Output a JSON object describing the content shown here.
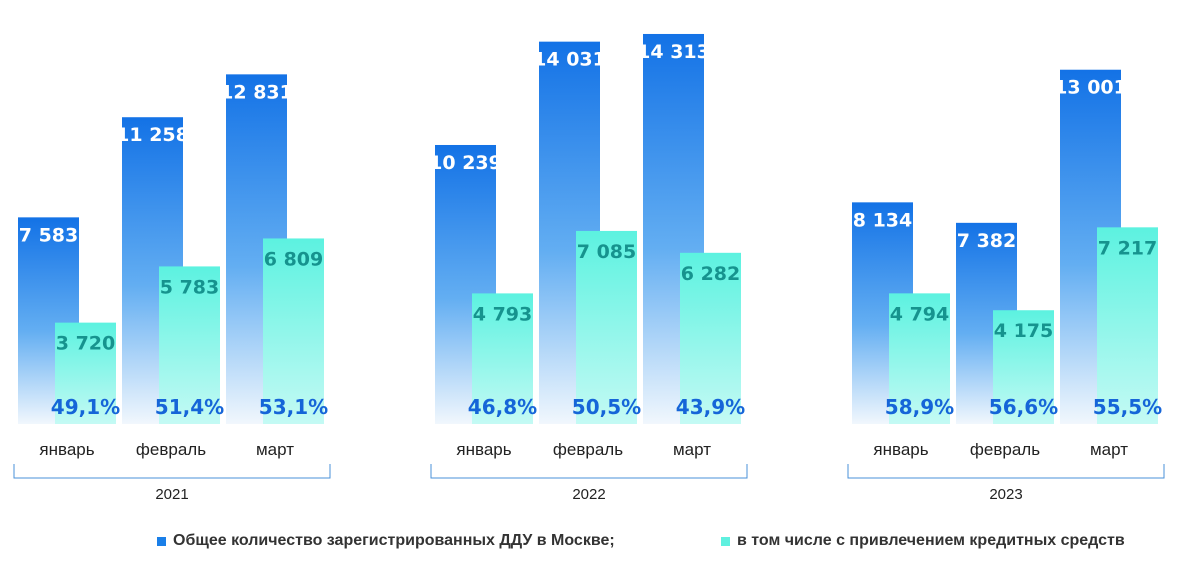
{
  "chart_data": {
    "type": "bar",
    "groups": [
      {
        "year": "2021",
        "months": [
          {
            "month": "январь",
            "total": 7583,
            "total_label": "7 583",
            "credit": 3720,
            "credit_label": "3 720",
            "share": "49,1%"
          },
          {
            "month": "февраль",
            "total": 11258,
            "total_label": "11 258",
            "credit": 5783,
            "credit_label": "5 783",
            "share": "51,4%"
          },
          {
            "month": "март",
            "total": 12831,
            "total_label": "12 831",
            "credit": 6809,
            "credit_label": "6 809",
            "share": "53,1%"
          }
        ]
      },
      {
        "year": "2022",
        "months": [
          {
            "month": "январь",
            "total": 10239,
            "total_label": "10 239",
            "credit": 4793,
            "credit_label": "4 793",
            "share": "46,8%"
          },
          {
            "month": "февраль",
            "total": 14031,
            "total_label": "14 031",
            "credit": 7085,
            "credit_label": "7 085",
            "share": "50,5%"
          },
          {
            "month": "март",
            "total": 14313,
            "total_label": "14 313",
            "credit": 6282,
            "credit_label": "6 282",
            "share": "43,9%"
          }
        ]
      },
      {
        "year": "2023",
        "months": [
          {
            "month": "январь",
            "total": 8134,
            "total_label": "8 134",
            "credit": 4794,
            "credit_label": "4 794",
            "share": "58,9%"
          },
          {
            "month": "февраль",
            "total": 7382,
            "total_label": "7 382",
            "credit": 4175,
            "credit_label": "4 175",
            "share": "56,6%"
          },
          {
            "month": "март",
            "total": 13001,
            "total_label": "13 001",
            "credit": 7217,
            "credit_label": "7 217",
            "share": "55,5%"
          }
        ]
      }
    ],
    "series": [
      {
        "name": "Общее количество зарегистрированных ДДУ в Москве;",
        "color": "#1a7fe8"
      },
      {
        "name": "в том числе с привлечением кредитных средств",
        "color": "#5ff0df"
      }
    ],
    "ylim": [
      0,
      15000
    ],
    "grid": false,
    "legend_position": "bottom"
  }
}
